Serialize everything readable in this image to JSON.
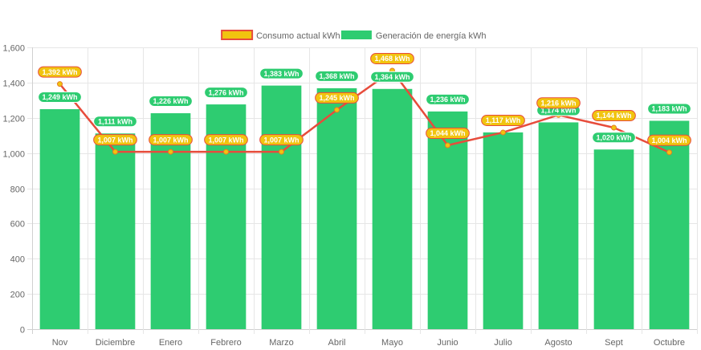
{
  "chart_data": {
    "type": "bar",
    "title": "",
    "xlabel": "",
    "ylabel": "",
    "ylim": [
      0,
      1600
    ],
    "yticks": [
      0,
      200,
      400,
      600,
      800,
      1000,
      1200,
      1400,
      1600
    ],
    "ytick_labels": [
      "0",
      "200",
      "400",
      "600",
      "800",
      "1,000",
      "1,200",
      "1,400",
      "1,600"
    ],
    "grid": true,
    "legend_position": "top-center",
    "categories": [
      "Nov",
      "Diciembre",
      "Enero",
      "Febrero",
      "Marzo",
      "Abril",
      "Mayo",
      "Junio",
      "Julio",
      "Agosto",
      "Sept",
      "Octubre"
    ],
    "series": [
      {
        "name": "Consumo actual kWh",
        "type": "line",
        "color": "#e74c3c",
        "point_color": "#f1c40f",
        "values": [
          1392,
          1007,
          1007,
          1007,
          1007,
          1245,
          1468,
          1044,
          1117,
          1216,
          1144,
          1004
        ],
        "labels": [
          "1,392 kWh",
          "1,007 kWh",
          "1,007 kWh",
          "1,007 kWh",
          "1,007 kWh",
          "1,245 kWh",
          "1,468 kWh",
          "1,044 kWh",
          "1,117 kWh",
          "1,216 kWh",
          "1,144 kWh",
          "1,004 kWh"
        ]
      },
      {
        "name": "Generación de energía kWh",
        "type": "bar",
        "color": "#2ecc71",
        "values": [
          1249,
          1111,
          1226,
          1276,
          1383,
          1368,
          1364,
          1236,
          1117,
          1174,
          1020,
          1183
        ],
        "labels": [
          "1,249 kWh",
          "1,111 kWh",
          "1,226 kWh",
          "1,276 kWh",
          "1,383 kWh",
          "1,368 kWh",
          "1,364 kWh",
          "1,236 kWh",
          "1,117 kWh",
          "1,174 kWh",
          "1,020 kWh",
          "1,183 kWh"
        ]
      }
    ],
    "legend": [
      {
        "label": "Consumo actual kWh",
        "fill": "#f1c40f",
        "stroke": "#e74c3c"
      },
      {
        "label": "Generación de energía kWh",
        "fill": "#2ecc71",
        "stroke": "#2ecc71"
      }
    ]
  }
}
